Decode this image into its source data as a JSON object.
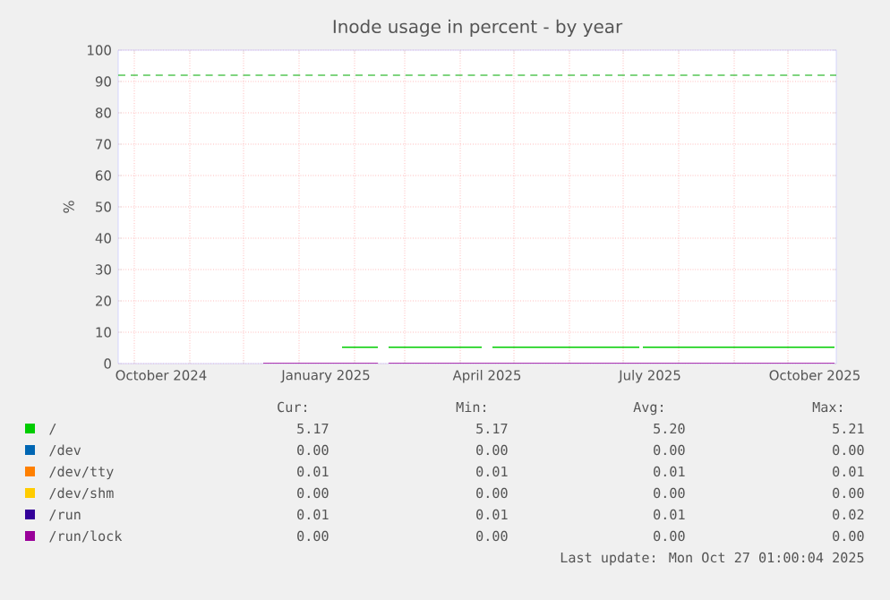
{
  "chart_data": {
    "type": "line",
    "title": "Inode usage in percent - by year",
    "ylabel": "%",
    "x": [
      "2024-12-12",
      "2025-01-25",
      "2025-02-14",
      "2025-02-17",
      "2025-02-20",
      "2025-04-13",
      "2025-04-16",
      "2025-04-19",
      "2025-07-10",
      "2025-07-11",
      "2025-07-12",
      "2025-10-27"
    ],
    "series": [
      {
        "name": "/",
        "color": "#00cc00",
        "values": [
          null,
          5.2,
          5.2,
          null,
          5.2,
          5.2,
          null,
          5.2,
          5.2,
          null,
          5.2,
          5.2
        ]
      },
      {
        "name": "/dev",
        "color": "#0066b3",
        "values": [
          null,
          null,
          null,
          null,
          null,
          null,
          null,
          null,
          null,
          null,
          null,
          null
        ]
      },
      {
        "name": "/dev/tty",
        "color": "#ff8000",
        "values": [
          null,
          null,
          null,
          null,
          null,
          null,
          null,
          null,
          null,
          null,
          null,
          null
        ]
      },
      {
        "name": "/dev/shm",
        "color": "#ffcc00",
        "values": [
          null,
          null,
          null,
          null,
          null,
          null,
          null,
          null,
          null,
          null,
          null,
          null
        ]
      },
      {
        "name": "/run",
        "color": "#330099",
        "values": [
          null,
          null,
          null,
          null,
          null,
          null,
          null,
          null,
          null,
          null,
          null,
          null
        ]
      },
      {
        "name": "/run/lock",
        "color": "#990099",
        "values": [
          0,
          0,
          0,
          null,
          0,
          0,
          0,
          0,
          0,
          0,
          0,
          0
        ]
      }
    ],
    "xlim": [
      "2024-09-22",
      "2025-10-28"
    ],
    "xticks": [
      {
        "value": "2024-10-01",
        "label": null
      },
      {
        "value": "2024-11-01",
        "label": null
      },
      {
        "value": "2024-12-01",
        "label": null
      },
      {
        "value": "2025-01-01",
        "label": null
      },
      {
        "value": "2025-02-01",
        "label": null
      },
      {
        "value": "2025-03-01",
        "label": null
      },
      {
        "value": "2025-04-01",
        "label": null
      },
      {
        "value": "2025-05-01",
        "label": null
      },
      {
        "value": "2025-06-01",
        "label": null
      },
      {
        "value": "2025-07-01",
        "label": null
      },
      {
        "value": "2025-08-01",
        "label": null
      },
      {
        "value": "2025-09-01",
        "label": null
      },
      {
        "value": "2025-10-01",
        "label": null
      },
      {
        "value": "2024-10-16",
        "label": "October 2024"
      },
      {
        "value": "2025-01-16",
        "label": "January 2025"
      },
      {
        "value": "2025-04-16",
        "label": "April 2025"
      },
      {
        "value": "2025-07-16",
        "label": "July 2025"
      },
      {
        "value": "2025-10-16",
        "label": "October 2025"
      }
    ],
    "ylim": [
      0,
      100
    ],
    "yticks": [
      0,
      10,
      20,
      30,
      40,
      50,
      60,
      70,
      80,
      90,
      100
    ],
    "ref_lines": [
      {
        "axis": "y",
        "value": 92,
        "color": "#00aa00",
        "line_style": "dashed"
      }
    ],
    "grid": true,
    "legend": "bottom",
    "annotations": [
      "Cur:",
      "Min:",
      "Avg:",
      "Max:",
      "5.17",
      "5.17",
      "5.20",
      "5.21",
      "0.00",
      "0.00",
      "0.00",
      "0.00",
      "0.01",
      "0.01",
      "0.01",
      "0.01",
      "0.00",
      "0.00",
      "0.00",
      "0.00",
      "0.01",
      "0.01",
      "0.01",
      "0.02",
      "0.00",
      "0.00",
      "0.00",
      "0.00",
      "Last update: Mon Oct 27 01:00:04 2025"
    ]
  }
}
